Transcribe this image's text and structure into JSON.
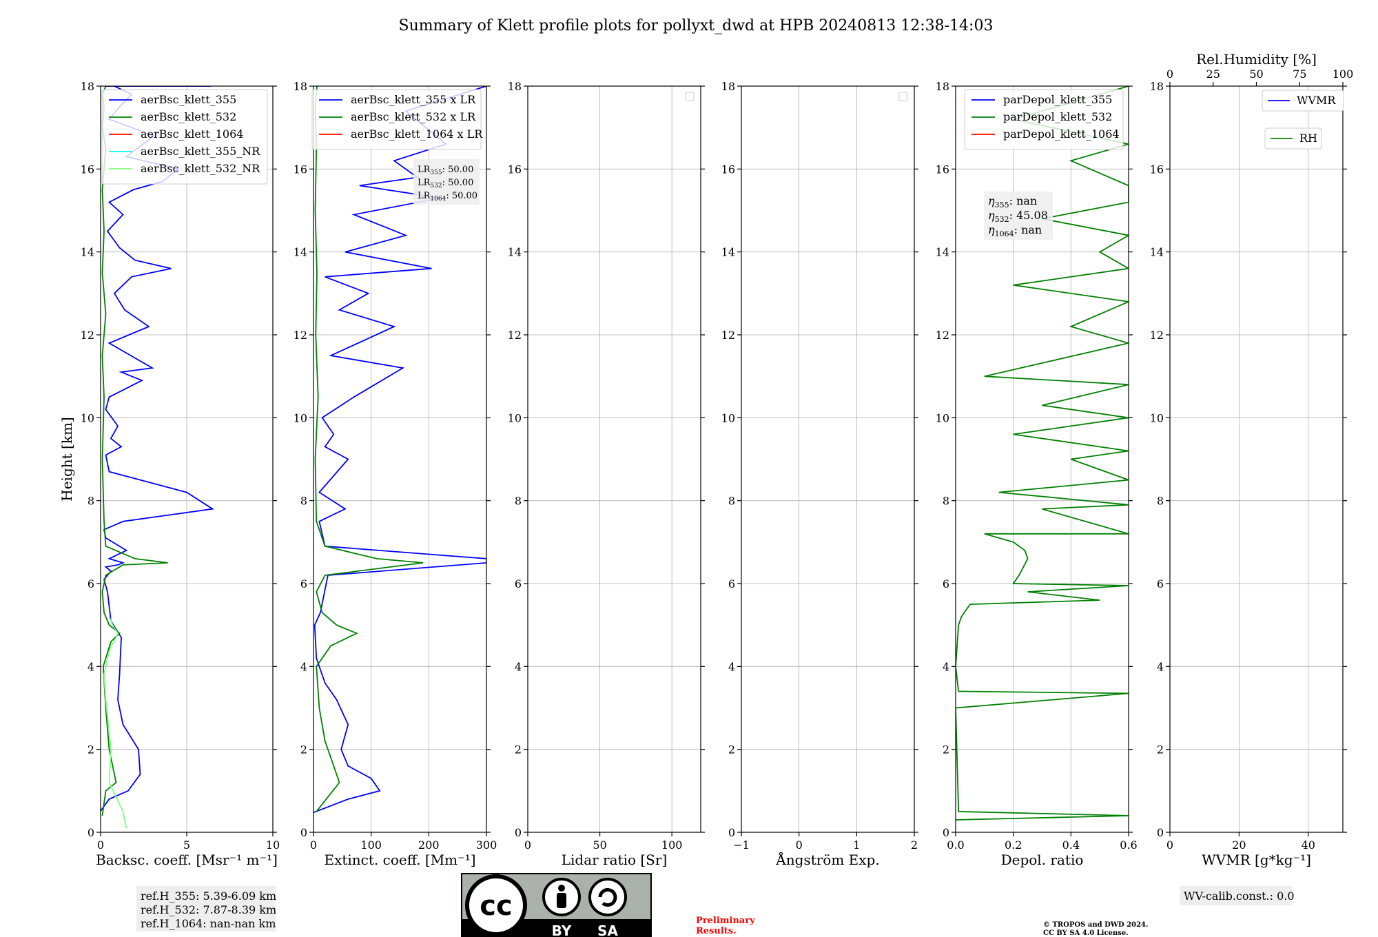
{
  "figure": {
    "title": "Summary of Klett profile plots for pollyxt_dwd at HPB 20240813 12:38-14:03",
    "ylabel": "Height [km]",
    "yticks": [
      "0",
      "2",
      "4",
      "6",
      "8",
      "10",
      "12",
      "14",
      "16",
      "18"
    ],
    "ref_heights": [
      "ref.H_355: 5.39-6.09 km",
      "ref.H_532: 7.87-8.39 km",
      "ref.H_1064: nan-nan km"
    ],
    "lr_text": [
      "LR",
      "355",
      ": 50.00",
      "LR",
      "532",
      ": 50.00",
      "LR",
      "1064",
      ": 50.00"
    ],
    "eta_text": [
      "η",
      "355",
      ": nan",
      "η",
      "532",
      ": 45.08",
      "η",
      "1064",
      ": nan"
    ],
    "wv_calib": "WV-calib.const.: 0.0",
    "preliminary": [
      "Preliminary",
      "Results."
    ],
    "copyright": [
      "© TROPOS and DWD 2024.",
      "CC BY SA 4.0 License."
    ],
    "license_badge": [
      "BY",
      "SA"
    ],
    "colors": {
      "blue": "#0000ff",
      "green": "#008000",
      "red": "#ff0000",
      "cyan": "#00ffff",
      "lightgreen": "#7fff7f",
      "prelim": "#ff0000"
    }
  },
  "chart_data": [
    {
      "type": "line",
      "xlabel": "Backsc. coeff. [Msr⁻¹ m⁻¹]",
      "xlim": [
        0,
        10
      ],
      "xticks": [
        "0",
        "5",
        "10"
      ],
      "ylim": [
        0,
        18
      ],
      "legend": [
        "aerBsc_klett_355",
        "aerBsc_klett_532",
        "aerBsc_klett_1064",
        "aerBsc_klett_355_NR",
        "aerBsc_klett_532_NR"
      ],
      "legend_position": "top-right",
      "series": [
        {
          "name": "aerBsc_klett_355",
          "color": "blue",
          "x": [
            -0.2,
            0.5,
            1.6,
            2.3,
            2.2,
            1.3,
            1.0,
            1.1,
            1.2,
            0.6,
            0.4,
            0.2,
            0.6,
            0.3,
            1.0,
            1.3,
            0.5,
            1.5,
            0.3,
            0.2,
            1.3,
            6.5,
            5.0,
            0.5,
            0.3,
            1.2,
            0.6,
            1.0,
            0.3,
            0.5,
            2.4,
            1.2,
            3.0,
            0.5,
            2.8,
            1.4,
            0.8,
            1.8,
            4.1,
            2.0,
            1.1,
            0.4,
            1.3,
            0.5,
            1.9,
            3.6,
            4.5,
            1.5,
            3.1,
            0.5,
            1.1,
            1.8,
            0.8,
            3.3,
            0.5,
            1.0,
            0.5,
            1.7,
            0.3,
            4.1,
            1.5,
            5.3,
            1.2,
            6.4,
            2.0
          ],
          "y": [
            0.4,
            0.8,
            1.0,
            1.4,
            2.0,
            2.6,
            3.2,
            3.8,
            4.7,
            5.1,
            5.8,
            6.1,
            6.3,
            6.4,
            6.45,
            6.5,
            6.6,
            6.8,
            7.1,
            7.3,
            7.5,
            7.8,
            8.2,
            8.7,
            9.1,
            9.3,
            9.5,
            9.8,
            10.2,
            10.5,
            10.9,
            11.1,
            11.2,
            11.8,
            12.2,
            12.6,
            13.0,
            13.4,
            13.6,
            13.8,
            14.1,
            14.5,
            14.9,
            15.2,
            15.5,
            15.7,
            16.0,
            16.3,
            16.8,
            17.2,
            17.5,
            17.8,
            18.0,
            18.0,
            18.0,
            18.0,
            18.0,
            18.0,
            18.0,
            18.0,
            18.0,
            18.0,
            18.0,
            18.0,
            18.0
          ]
        },
        {
          "name": "aerBsc_klett_532",
          "color": "green",
          "x": [
            0.1,
            0.3,
            0.9,
            0.5,
            0.3,
            0.15,
            0.6,
            1.1,
            0.5,
            0.2,
            0.1,
            0.3,
            1.3,
            3.9,
            2.0,
            0.3,
            0.2,
            0.1,
            0.2,
            0.1,
            0.3,
            0.1,
            0.2,
            0.1,
            0.3,
            0.1,
            0.2,
            0.1,
            0.3
          ],
          "y": [
            0.4,
            1.0,
            1.2,
            2.0,
            3.0,
            4.0,
            4.6,
            4.8,
            5.0,
            5.3,
            5.8,
            6.2,
            6.45,
            6.5,
            6.6,
            6.9,
            7.5,
            9.0,
            10.5,
            11.5,
            12.5,
            13.5,
            14.5,
            15.5,
            16.5,
            17.0,
            17.5,
            17.8,
            18.0
          ]
        },
        {
          "name": "aerBsc_klett_1064",
          "color": "red",
          "x": [],
          "y": []
        },
        {
          "name": "aerBsc_klett_355_NR",
          "color": "cyan",
          "x": [],
          "y": []
        },
        {
          "name": "aerBsc_klett_532_NR",
          "color": "lightgreen",
          "x": [
            1.5,
            1.3,
            0.5,
            0.6,
            0.4,
            0.3,
            0.2,
            0.4,
            0.6,
            0.8,
            1.0,
            0.7,
            0.5
          ],
          "y": [
            0.1,
            0.5,
            1.2,
            2.0,
            2.8,
            3.2,
            3.8,
            4.2,
            4.5,
            4.6,
            4.8,
            5.0,
            5.2
          ]
        }
      ]
    },
    {
      "type": "line",
      "xlabel": "Extinct. coeff. [Mm⁻¹]",
      "xlim": [
        0,
        300
      ],
      "xticks": [
        "0",
        "100",
        "200",
        "300"
      ],
      "ylim": [
        0,
        18
      ],
      "legend": [
        "aerBsc_klett_355 x LR",
        "aerBsc_klett_532 x LR",
        "aerBsc_klett_1064 x LR"
      ],
      "legend_position": "top-right",
      "series": [
        {
          "name": "aerBsc_klett_355 x LR",
          "color": "blue",
          "x": [
            -5,
            60,
            115,
            100,
            60,
            48,
            60,
            40,
            20,
            5,
            2,
            12,
            25,
            300,
            300,
            20,
            10,
            55,
            10,
            60,
            20,
            35,
            15,
            70,
            155,
            30,
            140,
            45,
            95,
            20,
            205,
            55,
            160,
            70,
            220,
            80,
            180,
            140,
            230,
            160,
            300
          ],
          "y": [
            0.45,
            0.8,
            1.0,
            1.3,
            1.6,
            2.0,
            2.6,
            3.2,
            3.6,
            4.2,
            5.0,
            5.3,
            6.2,
            6.5,
            6.6,
            6.9,
            7.5,
            7.8,
            8.2,
            9.0,
            9.3,
            9.6,
            10.0,
            10.5,
            11.2,
            11.5,
            12.2,
            12.6,
            13.0,
            13.4,
            13.6,
            14.0,
            14.4,
            14.9,
            15.3,
            15.6,
            15.8,
            16.2,
            16.6,
            17.4,
            18.0
          ]
        },
        {
          "name": "aerBsc_klett_532 x LR",
          "color": "green",
          "x": [
            5,
            45,
            35,
            20,
            10,
            5,
            30,
            75,
            40,
            15,
            5,
            20,
            190,
            110,
            20,
            5,
            3,
            8,
            4,
            6,
            3,
            5,
            3,
            6
          ],
          "y": [
            0.5,
            1.2,
            1.6,
            2.2,
            3.0,
            4.0,
            4.5,
            4.8,
            5.0,
            5.3,
            5.8,
            6.2,
            6.5,
            6.6,
            6.9,
            7.5,
            9.0,
            10.5,
            12.0,
            13.5,
            15.0,
            16.5,
            17.5,
            18.0
          ]
        },
        {
          "name": "aerBsc_klett_1064 x LR",
          "color": "red",
          "x": [],
          "y": []
        }
      ]
    },
    {
      "type": "line",
      "xlabel": "Lidar ratio [Sr]",
      "xlim": [
        0,
        120
      ],
      "xticks": [
        "0",
        "50",
        "100"
      ],
      "ylim": [
        0,
        18
      ],
      "legend": [],
      "series": []
    },
    {
      "type": "line",
      "xlabel": "Ångström Exp.",
      "xlim": [
        -1,
        2
      ],
      "xticks": [
        "−1",
        "0",
        "1",
        "2"
      ],
      "ylim": [
        0,
        18
      ],
      "legend": [],
      "series": []
    },
    {
      "type": "line",
      "xlabel": "Depol. ratio",
      "xlim": [
        0,
        0.6
      ],
      "xticks": [
        "0.0",
        "0.2",
        "0.4",
        "0.6"
      ],
      "ylim": [
        0,
        18
      ],
      "legend": [
        "parDepol_klett_355",
        "parDepol_klett_532",
        "parDepol_klett_1064"
      ],
      "legend_position": "top-right",
      "series": [
        {
          "name": "parDepol_klett_532",
          "color": "green",
          "x": [
            0.0,
            0.6,
            0.01,
            0.0,
            0.6,
            0.01,
            0.0,
            0.01,
            0.02,
            0.05,
            0.5,
            0.25,
            0.6,
            0.2,
            0.22,
            0.25,
            0.24,
            0.2,
            0.1,
            0.6,
            0.3,
            0.6,
            0.15,
            0.6,
            0.4,
            0.6,
            0.2,
            0.6,
            0.3,
            0.6,
            0.1,
            0.6,
            0.4,
            0.6,
            0.2,
            0.6,
            0.5,
            0.6,
            0.3,
            0.6,
            0.6,
            0.4,
            0.6,
            0.2,
            0.6
          ],
          "y": [
            0.3,
            0.4,
            0.5,
            3.0,
            3.35,
            3.4,
            4.0,
            5.0,
            5.2,
            5.5,
            5.6,
            5.8,
            5.95,
            6.0,
            6.2,
            6.6,
            6.8,
            7.0,
            7.2,
            7.2,
            7.8,
            7.9,
            8.2,
            8.5,
            9.0,
            9.2,
            9.6,
            10.0,
            10.3,
            10.8,
            11.0,
            11.8,
            12.2,
            12.8,
            13.2,
            13.6,
            14.0,
            14.4,
            14.8,
            15.2,
            15.6,
            16.2,
            16.6,
            17.2,
            18.0
          ]
        }
      ],
      "annotations": []
    },
    {
      "type": "line",
      "xlabel": "WVMR [g*kg⁻¹]",
      "xlim": [
        0,
        50
      ],
      "xticks": [
        "0",
        "20",
        "40"
      ],
      "ylim": [
        0,
        18
      ],
      "secondary_xlabel": "Rel.Humidity [%]",
      "secondary_xlim": [
        0,
        100
      ],
      "secondary_xticks": [
        "0",
        "25",
        "50",
        "75",
        "100"
      ],
      "legend": [
        "WVMR",
        "RH"
      ],
      "legend_position": "top-right",
      "series": [
        {
          "name": "WVMR",
          "color": "blue",
          "x": [],
          "y": []
        },
        {
          "name": "RH",
          "color": "green",
          "x": [],
          "y": []
        }
      ]
    }
  ]
}
